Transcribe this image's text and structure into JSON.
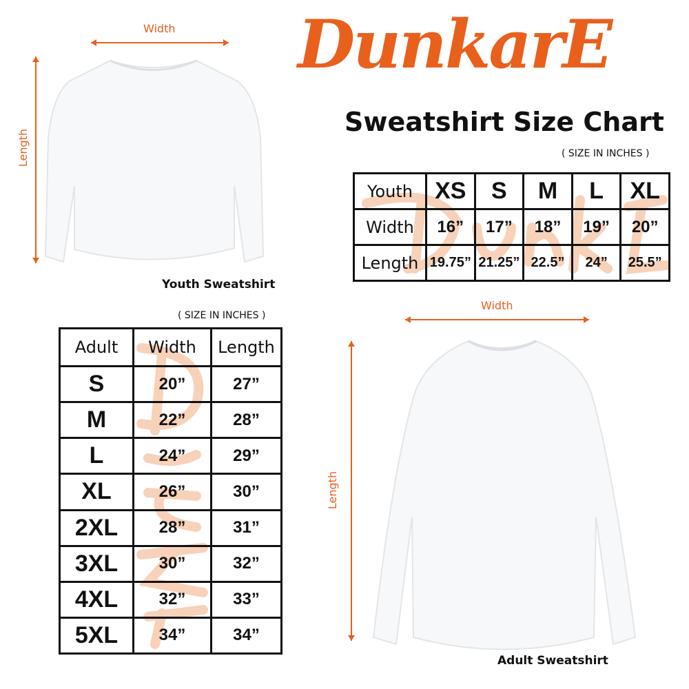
{
  "brand": {
    "logo_text": "DunkarE",
    "color": "#e8601c"
  },
  "title": "Sweatshirt Size Chart",
  "youth": {
    "caption": "Youth Sweatshirt",
    "width_label": "Width",
    "length_label": "Length",
    "unit_note": "( SIZE IN INCHES )",
    "header": "Youth",
    "sizes": [
      "XS",
      "S",
      "M",
      "L",
      "XL"
    ],
    "rows": [
      {
        "label": "Width",
        "values": [
          "16”",
          "17”",
          "18”",
          "19”",
          "20”"
        ]
      },
      {
        "label": "Length",
        "values": [
          "19.75”",
          "21.25”",
          "22.5”",
          "24”",
          "25.5”"
        ]
      }
    ]
  },
  "adult": {
    "caption": "Adult Sweatshirt",
    "width_label": "Width",
    "length_label": "Length",
    "unit_note": "( SIZE IN INCHES )",
    "headers": [
      "Adult",
      "Width",
      "Length"
    ],
    "rows": [
      {
        "size": "S",
        "width": "20”",
        "length": "27”"
      },
      {
        "size": "M",
        "width": "22”",
        "length": "28”"
      },
      {
        "size": "L",
        "width": "24”",
        "length": "29”"
      },
      {
        "size": "XL",
        "width": "26”",
        "length": "30”"
      },
      {
        "size": "2XL",
        "width": "28”",
        "length": "31”"
      },
      {
        "size": "3XL",
        "width": "30”",
        "length": "32”"
      },
      {
        "size": "4XL",
        "width": "32”",
        "length": "33”"
      },
      {
        "size": "5XL",
        "width": "34”",
        "length": "34”"
      }
    ]
  }
}
